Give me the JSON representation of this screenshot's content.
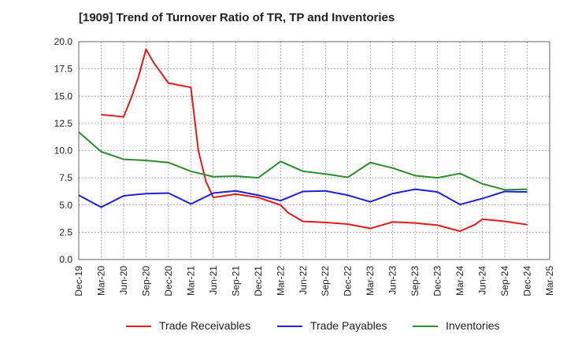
{
  "chart_data": {
    "type": "line",
    "title": "[1909]  Trend of Turnover Ratio of TR, TP and Inventories",
    "ylim": [
      0,
      20
    ],
    "yticks": [
      "0.0",
      "2.5",
      "5.0",
      "7.5",
      "10.0",
      "12.5",
      "15.0",
      "17.5",
      "20.0"
    ],
    "ytick_values": [
      0,
      2.5,
      5,
      7.5,
      10,
      12.5,
      15,
      17.5,
      20
    ],
    "x": [
      "Dec-19",
      "Jan-20",
      "Feb-20",
      "Mar-20",
      "Apr-20",
      "May-20",
      "Jun-20",
      "Jul-20",
      "Aug-20",
      "Sep-20",
      "Oct-20",
      "Nov-20",
      "Dec-20",
      "Jan-21",
      "Feb-21",
      "Mar-21",
      "Apr-21",
      "May-21",
      "Jun-21",
      "Jul-21",
      "Aug-21",
      "Sep-21",
      "Oct-21",
      "Nov-21",
      "Dec-21",
      "Jan-22",
      "Feb-22",
      "Mar-22",
      "Apr-22",
      "May-22",
      "Jun-22",
      "Jul-22",
      "Aug-22",
      "Sep-22",
      "Oct-22",
      "Nov-22",
      "Dec-22",
      "Jan-23",
      "Feb-23",
      "Mar-23",
      "Apr-23",
      "May-23",
      "Jun-23",
      "Jul-23",
      "Aug-23",
      "Sep-23",
      "Oct-23",
      "Nov-23",
      "Dec-23",
      "Jan-24",
      "Feb-24",
      "Mar-24",
      "Apr-24",
      "May-24",
      "Jun-24",
      "Jul-24",
      "Aug-24",
      "Sep-24",
      "Oct-24",
      "Nov-24",
      "Dec-24",
      "Jan-25",
      "Feb-25",
      "Mar-25"
    ],
    "xtick_labels": [
      "Dec-19",
      "Mar-20",
      "Jun-20",
      "Sep-20",
      "Dec-20",
      "Mar-21",
      "Jun-21",
      "Sep-21",
      "Dec-21",
      "Mar-22",
      "Jun-22",
      "Sep-22",
      "Dec-22",
      "Mar-23",
      "Jun-23",
      "Sep-23",
      "Dec-23",
      "Mar-24",
      "Jun-24",
      "Sep-24",
      "Dec-24",
      "Mar-25"
    ],
    "grid": true,
    "legend_position": "bottom",
    "series": [
      {
        "name": "Trade Receivables",
        "color": "#e31a1c",
        "points": [
          [
            "Mar-20",
            13.3
          ],
          [
            "Jun-20",
            13.1
          ],
          [
            "Jul-20",
            14.8
          ],
          [
            "Aug-20",
            16.8
          ],
          [
            "Sep-20",
            19.3
          ],
          [
            "Oct-20",
            18.1
          ],
          [
            "Dec-20",
            16.2
          ],
          [
            "Mar-21",
            15.8
          ],
          [
            "Apr-21",
            10.0
          ],
          [
            "May-21",
            7.2
          ],
          [
            "Jun-21",
            5.7
          ],
          [
            "Sep-21",
            6.0
          ],
          [
            "Dec-21",
            5.7
          ],
          [
            "Mar-22",
            5.0
          ],
          [
            "Apr-22",
            4.3
          ],
          [
            "Jun-22",
            3.5
          ],
          [
            "Sep-22",
            3.4
          ],
          [
            "Dec-22",
            3.25
          ],
          [
            "Mar-23",
            2.85
          ],
          [
            "Jun-23",
            3.45
          ],
          [
            "Sep-23",
            3.35
          ],
          [
            "Dec-23",
            3.15
          ],
          [
            "Mar-24",
            2.6
          ],
          [
            "May-24",
            3.2
          ],
          [
            "Jun-24",
            3.7
          ],
          [
            "Sep-24",
            3.5
          ],
          [
            "Dec-24",
            3.2
          ]
        ]
      },
      {
        "name": "Trade Payables",
        "color": "#1f1fd6",
        "points": [
          [
            "Dec-19",
            5.9
          ],
          [
            "Mar-20",
            4.8
          ],
          [
            "Jun-20",
            5.85
          ],
          [
            "Sep-20",
            6.05
          ],
          [
            "Dec-20",
            6.1
          ],
          [
            "Mar-21",
            5.1
          ],
          [
            "Jun-21",
            6.1
          ],
          [
            "Sep-21",
            6.3
          ],
          [
            "Dec-21",
            5.9
          ],
          [
            "Mar-22",
            5.4
          ],
          [
            "Jun-22",
            6.25
          ],
          [
            "Sep-22",
            6.3
          ],
          [
            "Dec-22",
            5.9
          ],
          [
            "Mar-23",
            5.3
          ],
          [
            "Jun-23",
            6.05
          ],
          [
            "Sep-23",
            6.45
          ],
          [
            "Dec-23",
            6.2
          ],
          [
            "Mar-24",
            5.05
          ],
          [
            "Jun-24",
            5.6
          ],
          [
            "Sep-24",
            6.25
          ],
          [
            "Dec-24",
            6.2
          ]
        ]
      },
      {
        "name": "Inventories",
        "color": "#2e8b2e",
        "points": [
          [
            "Dec-19",
            11.7
          ],
          [
            "Mar-20",
            9.9
          ],
          [
            "Jun-20",
            9.2
          ],
          [
            "Sep-20",
            9.1
          ],
          [
            "Dec-20",
            8.9
          ],
          [
            "Mar-21",
            8.1
          ],
          [
            "Jun-21",
            7.6
          ],
          [
            "Sep-21",
            7.65
          ],
          [
            "Dec-21",
            7.5
          ],
          [
            "Mar-22",
            9.0
          ],
          [
            "Jun-22",
            8.1
          ],
          [
            "Sep-22",
            7.85
          ],
          [
            "Dec-22",
            7.55
          ],
          [
            "Mar-23",
            8.9
          ],
          [
            "Jun-23",
            8.4
          ],
          [
            "Sep-23",
            7.7
          ],
          [
            "Dec-23",
            7.5
          ],
          [
            "Mar-24",
            7.9
          ],
          [
            "Jun-24",
            6.95
          ],
          [
            "Sep-24",
            6.4
          ],
          [
            "Dec-24",
            6.45
          ]
        ]
      }
    ]
  }
}
